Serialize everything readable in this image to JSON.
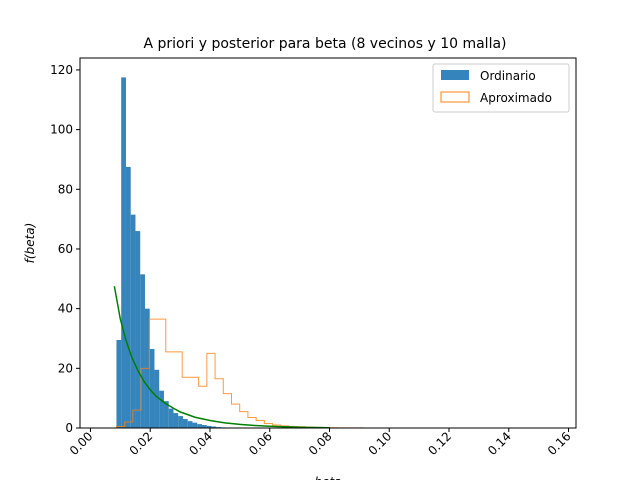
{
  "chart_data": {
    "type": "bar",
    "title": "A priori y posterior para beta (8 vecinos y 10 malla)",
    "xlabel": "beta",
    "ylabel": "f(beta)",
    "xlim": [
      -0.0035,
      0.1625
    ],
    "ylim": [
      0,
      124
    ],
    "x_ticks": [
      "0.00",
      "0.02",
      "0.04",
      "0.06",
      "0.08",
      "0.10",
      "0.12",
      "0.14",
      "0.16"
    ],
    "y_ticks": [
      "0",
      "20",
      "40",
      "60",
      "80",
      "100",
      "120"
    ],
    "grid": false,
    "legend_position": "top-right",
    "colors": {
      "ordinario": "#1f77b4",
      "aproximado": "#ff7f0e",
      "curve": "#008000"
    },
    "series": [
      {
        "name": "Ordinario",
        "kind": "histogram-filled",
        "bin_width": 0.00159,
        "bins_start": [
          0.0087,
          0.01029,
          0.01188,
          0.01347,
          0.01506,
          0.01665,
          0.01824,
          0.01983,
          0.02142,
          0.02301,
          0.0246,
          0.02619,
          0.02778,
          0.02937,
          0.03096,
          0.03255,
          0.03414,
          0.03573,
          0.03732,
          0.03891,
          0.0405,
          0.04209,
          0.04368,
          0.04527
        ],
        "values": [
          29.5,
          117.5,
          87.5,
          71.5,
          66,
          51.5,
          40,
          26.5,
          19.5,
          12.5,
          9,
          6.5,
          5,
          4,
          3,
          2.3,
          1.8,
          1.3,
          1,
          0.7,
          0.5,
          0.3,
          0.2,
          0.1
        ]
      },
      {
        "name": "Aproximado",
        "kind": "histogram-step",
        "edges": [
          0.0087,
          0.01145,
          0.0142,
          0.01695,
          0.0197,
          0.02245,
          0.0252,
          0.02795,
          0.0307,
          0.03345,
          0.0362,
          0.03895,
          0.0417,
          0.04445,
          0.0472,
          0.04995,
          0.0527,
          0.05545,
          0.0582,
          0.06095,
          0.0637,
          0.06645,
          0.0692,
          0.07195,
          0.0747,
          0.07745,
          0.0802,
          0.08295,
          0.0857,
          0.08845,
          0.0912,
          0.09395
        ],
        "values": [
          0.5,
          2,
          6,
          20,
          36.5,
          36.5,
          25.5,
          25.5,
          17,
          17,
          14,
          25,
          16.5,
          11.5,
          8,
          5.5,
          3.5,
          2.5,
          1.5,
          1,
          0.7,
          0.5,
          0.4,
          0.3,
          0.2,
          0.15,
          0.1,
          0.05,
          0.05,
          0.03,
          0.02
        ]
      },
      {
        "name": "",
        "kind": "line",
        "x": [
          0.008,
          0.01,
          0.012,
          0.014,
          0.016,
          0.018,
          0.02,
          0.022,
          0.025,
          0.028,
          0.03,
          0.035,
          0.04,
          0.045,
          0.05,
          0.055,
          0.06,
          0.065,
          0.07,
          0.075,
          0.08
        ],
        "y": [
          47.5,
          36.5,
          29,
          23.3,
          19,
          15.5,
          12.8,
          10.6,
          8.3,
          6.5,
          5.4,
          3.6,
          2.5,
          1.7,
          1.2,
          0.85,
          0.6,
          0.4,
          0.25,
          0.15,
          0.08
        ]
      }
    ]
  }
}
